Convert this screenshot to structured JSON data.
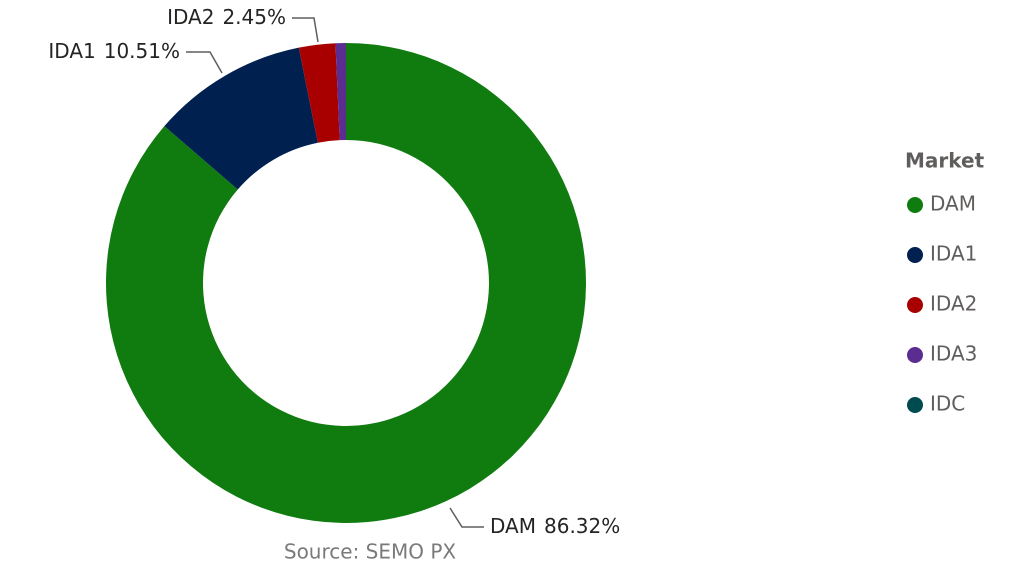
{
  "chart_data": {
    "type": "donut",
    "categories": [
      "DAM",
      "IDA1",
      "IDA2",
      "IDA3",
      "IDC"
    ],
    "values": [
      86.32,
      10.51,
      2.45,
      0.7,
      0
    ],
    "value_labels": [
      "86.32%",
      "10.51%",
      "2.45%",
      null,
      null
    ],
    "colors": [
      "#107c10",
      "#002050",
      "#a80000",
      "#5c2d91",
      "#004b50"
    ],
    "legend_title": "Market",
    "legend": "right",
    "source": "Source: SEMO PX"
  }
}
